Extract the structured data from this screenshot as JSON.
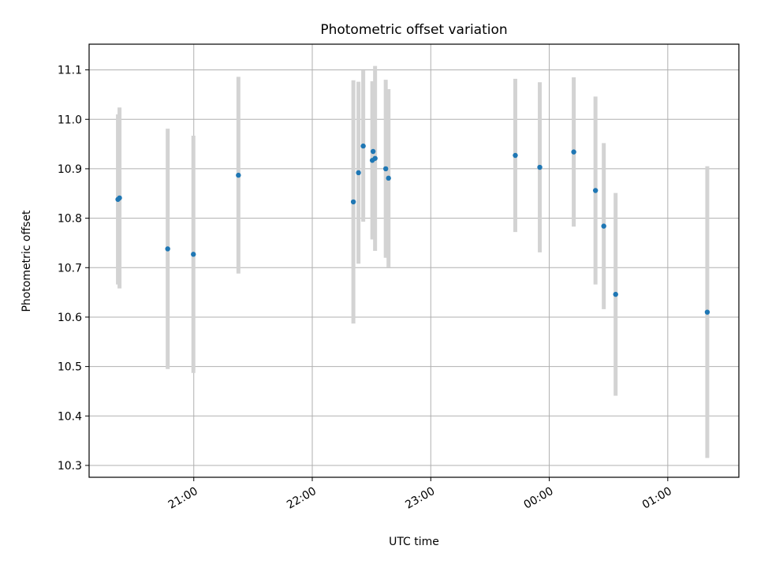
{
  "chart_data": {
    "type": "scatter",
    "title": "Photometric offset variation",
    "xlabel": "UTC time",
    "ylabel": "Photometric offset",
    "xlim": [
      "2024-01-01T20:07:00",
      "2024-01-02T01:36:00"
    ],
    "ylim": [
      10.276,
      11.152
    ],
    "x_ticks": [
      {
        "value": "2024-01-01T21:00:00",
        "label": "21:00"
      },
      {
        "value": "2024-01-01T22:00:00",
        "label": "22:00"
      },
      {
        "value": "2024-01-01T23:00:00",
        "label": "23:00"
      },
      {
        "value": "2024-01-02T00:00:00",
        "label": "00:00"
      },
      {
        "value": "2024-01-02T01:00:00",
        "label": "01:00"
      }
    ],
    "y_ticks": [
      10.3,
      10.4,
      10.5,
      10.6,
      10.7,
      10.8,
      10.9,
      11.0,
      11.1
    ],
    "grid": true,
    "colors": {
      "points": "#1f77b4",
      "errorbars": "#d3d3d3",
      "grid": "#b0b0b0"
    },
    "points": [
      {
        "x": "2024-01-01T20:21:36",
        "y": 10.838,
        "err": 0.172
      },
      {
        "x": "2024-01-01T20:22:24",
        "y": 10.841,
        "err": 0.183
      },
      {
        "x": "2024-01-01T20:46:48",
        "y": 10.738,
        "err": 0.243
      },
      {
        "x": "2024-01-01T20:59:48",
        "y": 10.727,
        "err": 0.24
      },
      {
        "x": "2024-01-01T21:22:36",
        "y": 10.887,
        "err": 0.199
      },
      {
        "x": "2024-01-01T22:20:48",
        "y": 10.833,
        "err": 0.246
      },
      {
        "x": "2024-01-01T22:23:24",
        "y": 10.892,
        "err": 0.184
      },
      {
        "x": "2024-01-01T22:25:48",
        "y": 10.946,
        "err": 0.153
      },
      {
        "x": "2024-01-01T22:30:24",
        "y": 10.917,
        "err": 0.16
      },
      {
        "x": "2024-01-01T22:30:48",
        "y": 10.935,
        "err": 0.14
      },
      {
        "x": "2024-01-01T22:31:48",
        "y": 10.921,
        "err": 0.187
      },
      {
        "x": "2024-01-01T22:37:12",
        "y": 10.9,
        "err": 0.18
      },
      {
        "x": "2024-01-01T22:38:36",
        "y": 10.881,
        "err": 0.18
      },
      {
        "x": "2024-01-01T23:42:48",
        "y": 10.927,
        "err": 0.155
      },
      {
        "x": "2024-01-01T23:55:12",
        "y": 10.903,
        "err": 0.172
      },
      {
        "x": "2024-01-02T00:12:24",
        "y": 10.934,
        "err": 0.151
      },
      {
        "x": "2024-01-02T00:23:24",
        "y": 10.856,
        "err": 0.19
      },
      {
        "x": "2024-01-02T00:27:36",
        "y": 10.784,
        "err": 0.168
      },
      {
        "x": "2024-01-02T00:33:36",
        "y": 10.646,
        "err": 0.205
      },
      {
        "x": "2024-01-02T01:20:00",
        "y": 10.61,
        "err": 0.295
      }
    ]
  }
}
